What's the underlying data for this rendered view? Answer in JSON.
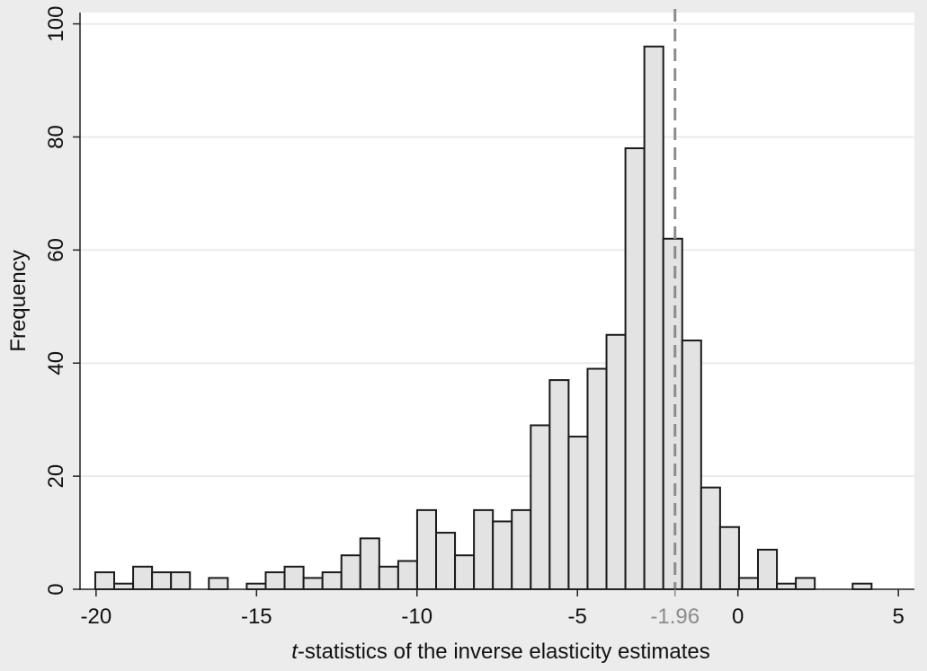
{
  "chart_data": {
    "type": "bar",
    "title": "",
    "xlabel_italic": "t",
    "xlabel_rest": "-statistics of the inverse elasticity estimates",
    "ylabel": "Frequency",
    "xlim": [
      -20.5,
      5.5
    ],
    "ylim": [
      0,
      102
    ],
    "x_ticks": [
      -20,
      -15,
      -10,
      -5,
      0,
      5
    ],
    "x_tick_labels": [
      "-20",
      "-15",
      "-10",
      "-5",
      "0",
      "5"
    ],
    "y_ticks": [
      0,
      20,
      40,
      60,
      80,
      100
    ],
    "y_tick_labels": [
      "0",
      "20",
      "40",
      "60",
      "80",
      "100"
    ],
    "reference_line": {
      "x": -1.96,
      "label": "-1.96",
      "style": "dashed"
    },
    "bin_width": 0.59,
    "bins": [
      {
        "x": -19.73,
        "count": 3
      },
      {
        "x": -19.14,
        "count": 1
      },
      {
        "x": -18.55,
        "count": 4
      },
      {
        "x": -17.96,
        "count": 3
      },
      {
        "x": -17.37,
        "count": 3
      },
      {
        "x": -16.19,
        "count": 2
      },
      {
        "x": -15.01,
        "count": 1
      },
      {
        "x": -14.42,
        "count": 3
      },
      {
        "x": -13.83,
        "count": 4
      },
      {
        "x": -13.24,
        "count": 2
      },
      {
        "x": -12.65,
        "count": 3
      },
      {
        "x": -12.06,
        "count": 6
      },
      {
        "x": -11.47,
        "count": 9
      },
      {
        "x": -10.88,
        "count": 4
      },
      {
        "x": -10.29,
        "count": 5
      },
      {
        "x": -9.7,
        "count": 14
      },
      {
        "x": -9.11,
        "count": 10
      },
      {
        "x": -8.52,
        "count": 6
      },
      {
        "x": -7.93,
        "count": 14
      },
      {
        "x": -7.34,
        "count": 12
      },
      {
        "x": -6.75,
        "count": 14
      },
      {
        "x": -6.16,
        "count": 29
      },
      {
        "x": -5.57,
        "count": 37
      },
      {
        "x": -4.98,
        "count": 27
      },
      {
        "x": -4.39,
        "count": 39
      },
      {
        "x": -3.8,
        "count": 45
      },
      {
        "x": -3.21,
        "count": 78
      },
      {
        "x": -2.62,
        "count": 96
      },
      {
        "x": -2.03,
        "count": 62
      },
      {
        "x": -1.44,
        "count": 44
      },
      {
        "x": -0.85,
        "count": 18
      },
      {
        "x": -0.26,
        "count": 11
      },
      {
        "x": 0.33,
        "count": 2
      },
      {
        "x": 0.92,
        "count": 7
      },
      {
        "x": 1.51,
        "count": 1
      },
      {
        "x": 2.1,
        "count": 2
      },
      {
        "x": 3.87,
        "count": 1
      }
    ],
    "grid": true,
    "colors": {
      "bar_fill": "#e3e3e3",
      "bar_stroke": "#1a1a1a",
      "plot_bg": "#ffffff",
      "page_bg": "#ececec",
      "grid": "#ebebeb",
      "reference_line": "#8c8c8c",
      "reference_label": "#8c8c8c"
    }
  }
}
